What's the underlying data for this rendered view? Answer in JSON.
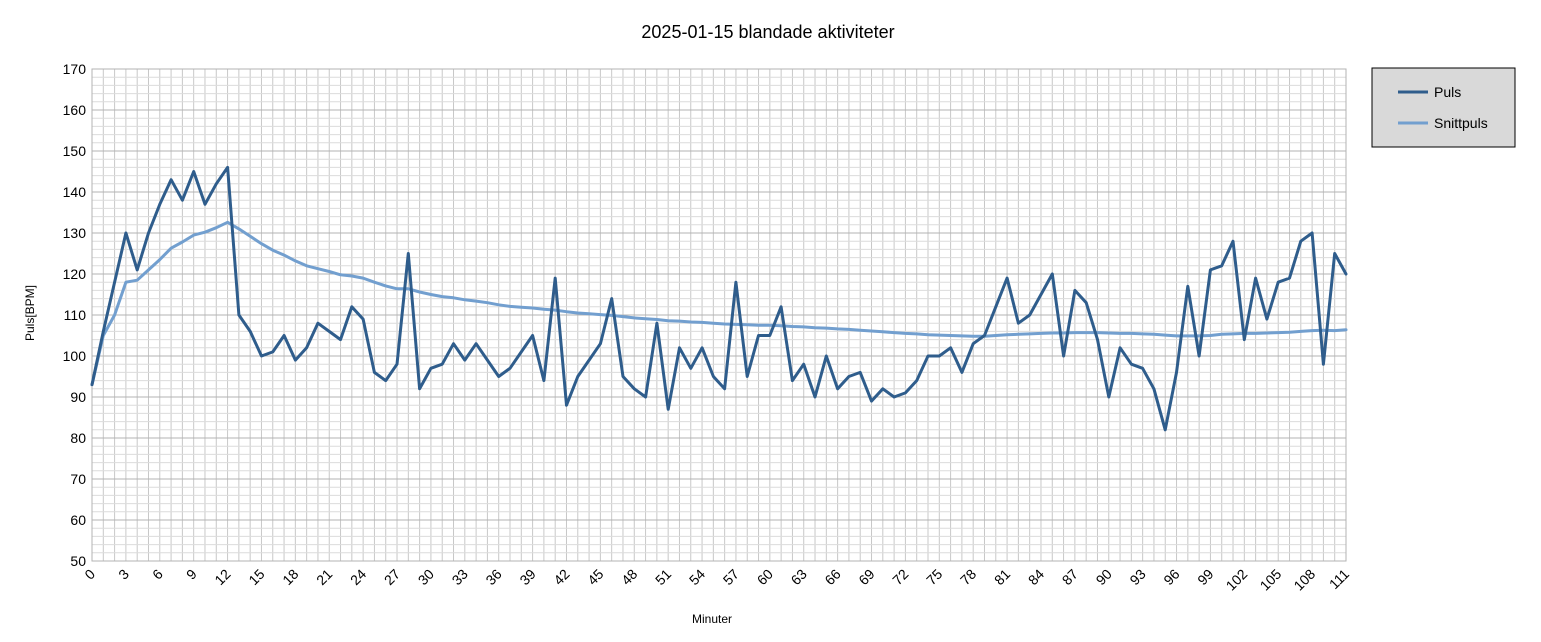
{
  "chart_data": {
    "type": "line",
    "title": "2025-01-15 blandade aktiviteter",
    "xlabel": "Minuter",
    "ylabel": "Puls[BPM]",
    "ylim": [
      50,
      170
    ],
    "yticks": [
      50,
      60,
      70,
      80,
      90,
      100,
      110,
      120,
      130,
      140,
      150,
      160,
      170
    ],
    "xlim": [
      0,
      111
    ],
    "xticks": [
      0,
      3,
      6,
      9,
      12,
      15,
      18,
      21,
      24,
      27,
      30,
      33,
      36,
      39,
      42,
      45,
      48,
      51,
      54,
      57,
      60,
      63,
      66,
      69,
      72,
      75,
      78,
      81,
      84,
      87,
      90,
      93,
      96,
      99,
      102,
      105,
      108,
      111
    ],
    "grid": true,
    "legend_position": "right",
    "series": [
      {
        "name": "Puls",
        "color": "#2f5d8c",
        "values": [
          93,
          106,
          118,
          130,
          121,
          130,
          137,
          143,
          138,
          145,
          137,
          142,
          146,
          110,
          106,
          100,
          101,
          105,
          99,
          102,
          108,
          106,
          104,
          112,
          109,
          96,
          94,
          98,
          125,
          92,
          97,
          98,
          103,
          99,
          103,
          99,
          95,
          97,
          101,
          105,
          94,
          119,
          88,
          95,
          99,
          103,
          114,
          95,
          92,
          90,
          108,
          87,
          102,
          97,
          102,
          95,
          92,
          118,
          95,
          105,
          105,
          112,
          94,
          98,
          90,
          100,
          92,
          95,
          96,
          89,
          92,
          90,
          91,
          94,
          100,
          100,
          102,
          96,
          103,
          105,
          112,
          119,
          108,
          110,
          115,
          120,
          100,
          116,
          113,
          104,
          90,
          102,
          98,
          97,
          92,
          82,
          96,
          117,
          100,
          121,
          122,
          128,
          104,
          119,
          109,
          118,
          119,
          128,
          130,
          98,
          125,
          120
        ]
      },
      {
        "name": "Snittpuls",
        "color": "#729fcf",
        "values": [
          93,
          105,
          110,
          118,
          118.5,
          121,
          123.5,
          126.3,
          127.8,
          129.5,
          130.2,
          131.3,
          132.6,
          131,
          129.2,
          127.4,
          125.8,
          124.6,
          123.2,
          122,
          121.3,
          120.6,
          119.8,
          119.5,
          119,
          118,
          117.1,
          116.4,
          116.4,
          115.6,
          115,
          114.5,
          114.2,
          113.7,
          113.4,
          113,
          112.5,
          112.1,
          111.9,
          111.7,
          111.4,
          111.2,
          110.8,
          110.5,
          110.3,
          110.1,
          109.9,
          109.6,
          109.3,
          109.1,
          108.9,
          108.6,
          108.5,
          108.3,
          108.2,
          108,
          107.8,
          107.7,
          107.6,
          107.5,
          107.5,
          107.4,
          107.2,
          107.1,
          106.9,
          106.8,
          106.6,
          106.5,
          106.3,
          106.1,
          105.9,
          105.7,
          105.5,
          105.4,
          105.2,
          105.1,
          105,
          104.9,
          104.8,
          104.8,
          105,
          105.2,
          105.3,
          105.4,
          105.5,
          105.6,
          105.6,
          105.7,
          105.7,
          105.7,
          105.6,
          105.5,
          105.5,
          105.4,
          105.3,
          105.1,
          104.9,
          104.9,
          104.9,
          105,
          105.3,
          105.4,
          105.5,
          105.5,
          105.6,
          105.7,
          105.8,
          106,
          106.2,
          106.3,
          106.2,
          106.4
        ]
      }
    ]
  }
}
